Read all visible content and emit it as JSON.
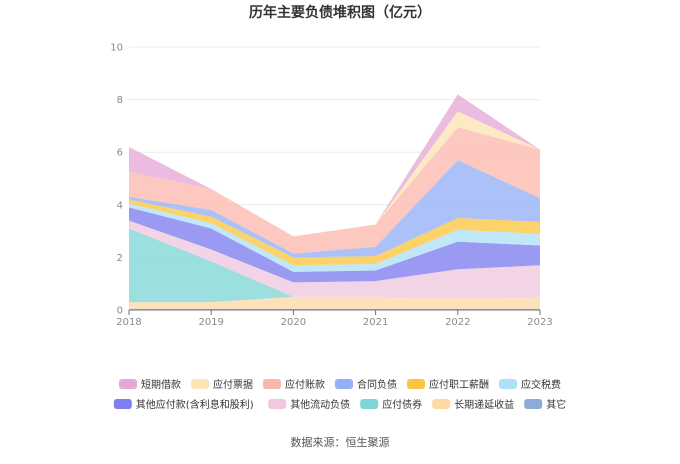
{
  "chart_data": {
    "type": "area",
    "stacked": true,
    "title": "历年主要负债堆积图（亿元）",
    "x": [
      "2018",
      "2019",
      "2020",
      "2021",
      "2022",
      "2023"
    ],
    "ylim": [
      0,
      10
    ],
    "yticks": [
      "0",
      "2",
      "4",
      "6",
      "8",
      "10"
    ],
    "grid": true,
    "legend_position": "bottom",
    "series": [
      {
        "name": "其它",
        "color": "#8eaad6",
        "values": [
          0.05,
          0.05,
          0.05,
          0.05,
          0.05,
          0.05
        ]
      },
      {
        "name": "长期递延收益",
        "color": "#fdd9a6",
        "values": [
          0.25,
          0.25,
          0.45,
          0.45,
          0.4,
          0.45
        ]
      },
      {
        "name": "应付债券",
        "color": "#7fd6d6",
        "values": [
          2.8,
          1.55,
          0.0,
          0.0,
          0.0,
          0.0
        ]
      },
      {
        "name": "其他流动负债",
        "color": "#f0c8e0",
        "values": [
          0.3,
          0.45,
          0.55,
          0.6,
          1.1,
          1.2
        ]
      },
      {
        "name": "其他应付款(含利息和股利)",
        "color": "#7d7ef0",
        "values": [
          0.5,
          0.8,
          0.4,
          0.4,
          1.05,
          0.75
        ]
      },
      {
        "name": "应交税费",
        "color": "#aee0f8",
        "values": [
          0.15,
          0.2,
          0.25,
          0.25,
          0.45,
          0.45
        ]
      },
      {
        "name": "应付职工薪酬",
        "color": "#fbc540",
        "values": [
          0.15,
          0.25,
          0.3,
          0.3,
          0.45,
          0.45
        ]
      },
      {
        "name": "合同负债",
        "color": "#93b0f5",
        "values": [
          0.1,
          0.25,
          0.15,
          0.35,
          2.2,
          0.9
        ]
      },
      {
        "name": "应付账款",
        "color": "#fbb8ad",
        "values": [
          0.95,
          0.8,
          0.65,
          0.85,
          1.25,
          1.85
        ]
      },
      {
        "name": "应付票据",
        "color": "#fde4b4",
        "values": [
          0.0,
          0.0,
          0.0,
          0.0,
          0.6,
          0.0
        ]
      },
      {
        "name": "短期借款",
        "color": "#e6a9d7",
        "values": [
          0.95,
          0.0,
          0.0,
          0.0,
          0.65,
          0.0
        ]
      }
    ],
    "legend_order": [
      "短期借款",
      "应付票据",
      "应付账款",
      "合同负债",
      "应付职工薪酬",
      "应交税费",
      "其他应付款(含利息和股利)",
      "其他流动负债",
      "应付债券",
      "长期递延收益",
      "其它"
    ]
  },
  "source": "数据来源：恒生聚源"
}
